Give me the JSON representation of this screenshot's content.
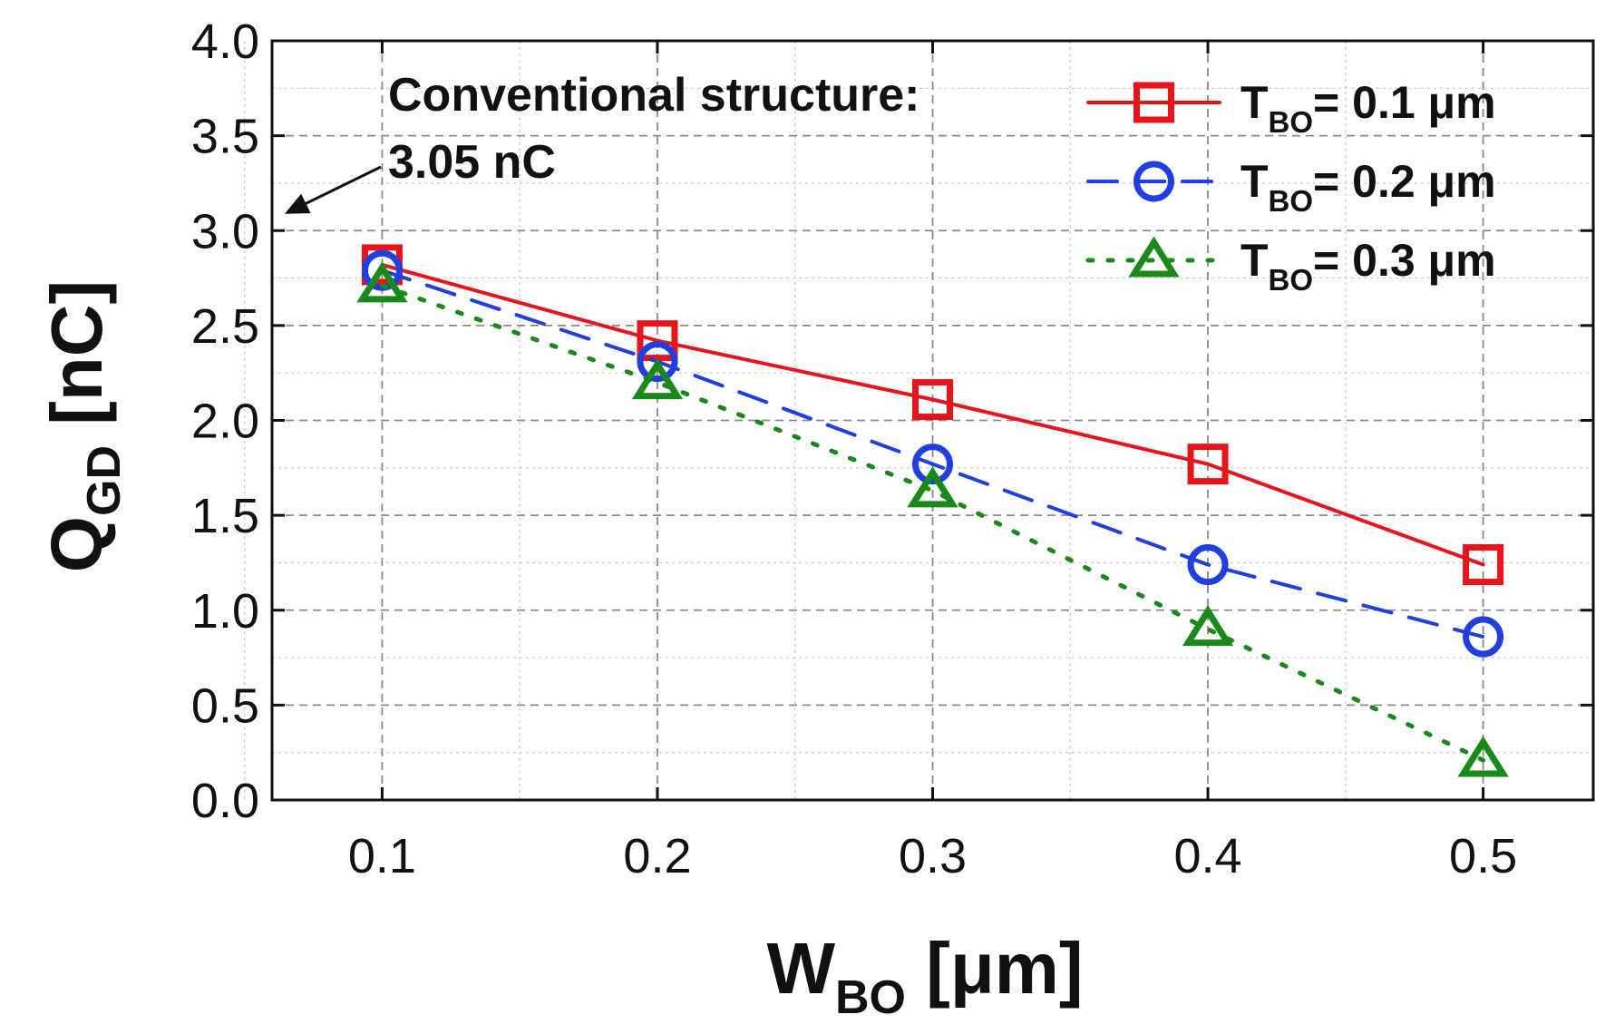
{
  "chart_data": {
    "type": "line",
    "title": "",
    "xlabel": {
      "main": "W",
      "sub": "BO",
      "unit": " [μm]"
    },
    "ylabel": {
      "main": "Q",
      "sub": "GD",
      "unit": " [nC]"
    },
    "xlim": [
      0.06,
      0.54
    ],
    "ylim": [
      0.0,
      4.0
    ],
    "x": [
      0.1,
      0.2,
      0.3,
      0.4,
      0.5
    ],
    "x_ticks": [
      "0.1",
      "0.2",
      "0.3",
      "0.4",
      "0.5"
    ],
    "y_ticks": [
      "0.0",
      "0.5",
      "1.0",
      "1.5",
      "2.0",
      "2.5",
      "3.0",
      "3.5",
      "4.0"
    ],
    "grid": true,
    "legend_position": "top-right",
    "series": [
      {
        "name": "T_BO= 0.1 μm",
        "prefix": "T",
        "sub": "BO",
        "suffix": "= 0.1 μm",
        "color": "#e8141c",
        "marker": "square",
        "line": "solid",
        "values": [
          2.82,
          2.42,
          2.11,
          1.77,
          1.24
        ]
      },
      {
        "name": "T_BO= 0.2 μm",
        "prefix": "T",
        "sub": "BO",
        "suffix": "= 0.2 μm",
        "color": "#1f3fe0",
        "marker": "circle",
        "line": "dashed",
        "values": [
          2.79,
          2.31,
          1.77,
          1.24,
          0.86
        ]
      },
      {
        "name": "T_BO= 0.3 μm",
        "prefix": "T",
        "sub": "BO",
        "suffix": "= 0.3 μm",
        "color": "#198a19",
        "marker": "triangle",
        "line": "dotted",
        "values": [
          2.71,
          2.2,
          1.63,
          0.9,
          0.21
        ]
      }
    ],
    "annotation": {
      "line1": "Conventional structure:",
      "line2": "3.05 nC",
      "value": 3.05
    }
  }
}
